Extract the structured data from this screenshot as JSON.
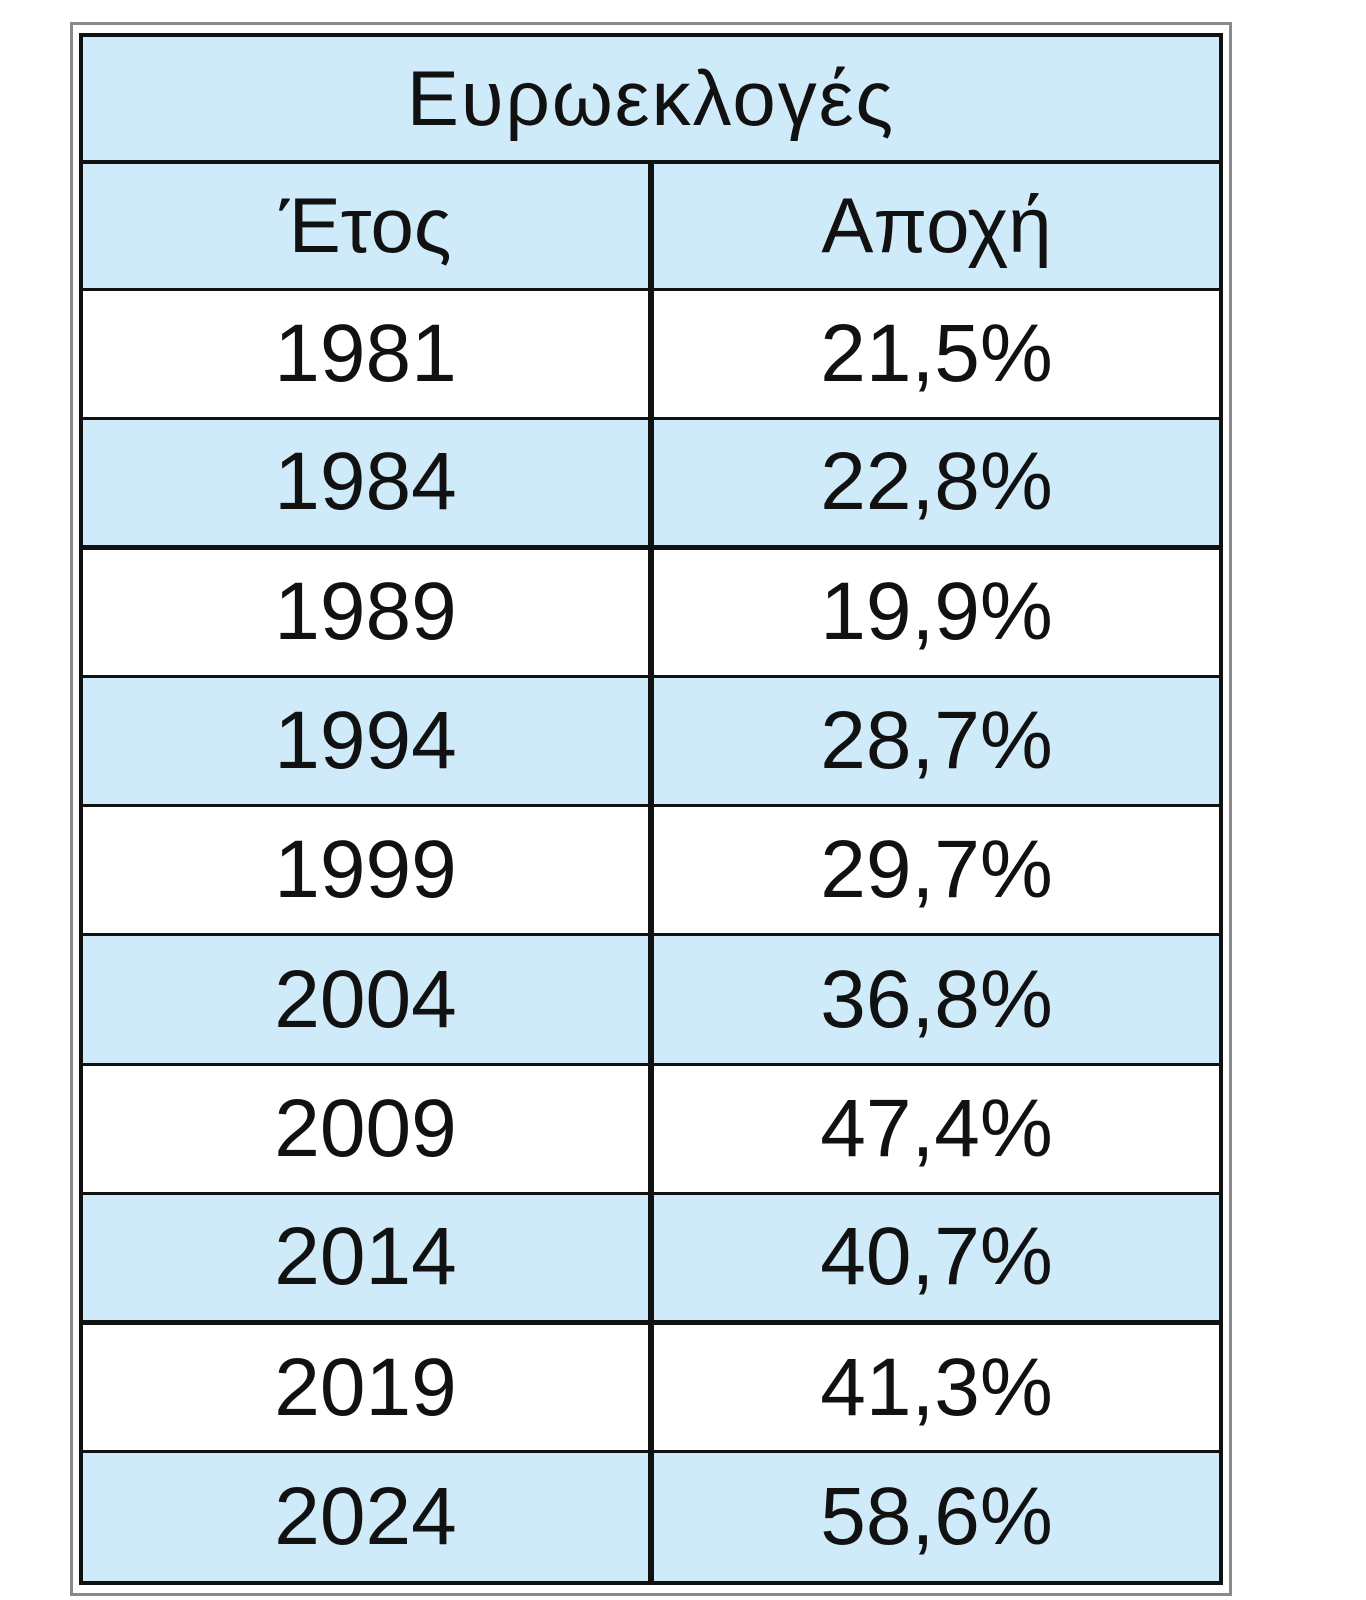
{
  "chart_data": {
    "type": "table",
    "title": "Ευρωεκλογές",
    "columns": [
      "Έτος",
      "Αποχή"
    ],
    "rows": [
      [
        "1981",
        "21,5%"
      ],
      [
        "1984",
        "22,8%"
      ],
      [
        "1989",
        "19,9%"
      ],
      [
        "1994",
        "28,7%"
      ],
      [
        "1999",
        "29,7%"
      ],
      [
        "2004",
        "36,8%"
      ],
      [
        "2009",
        "47,4%"
      ],
      [
        "2014",
        "40,7%"
      ],
      [
        "2019",
        "41,3%"
      ],
      [
        "2024",
        "58,6%"
      ]
    ],
    "x": [
      1981,
      1984,
      1989,
      1994,
      1999,
      2004,
      2009,
      2014,
      2019,
      2024
    ],
    "values": [
      21.5,
      22.8,
      19.9,
      28.7,
      29.7,
      36.8,
      47.4,
      40.7,
      41.3,
      58.6
    ],
    "colors": {
      "header_fill": "#cfeaf8",
      "stripe_fill": "#cfeaf8",
      "plain_fill": "#ffffff",
      "text": "#111111",
      "border": "#111111"
    }
  }
}
